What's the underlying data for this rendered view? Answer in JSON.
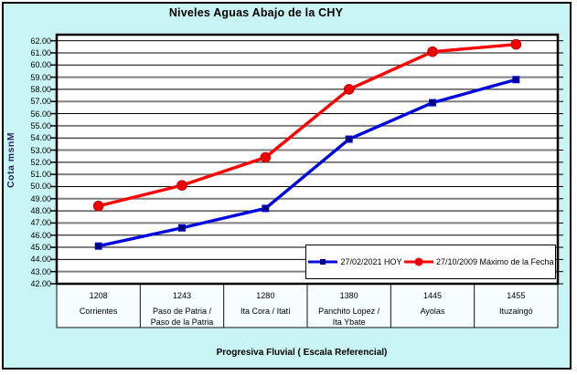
{
  "chart_title": "Niveles Aguas Abajo de la CHY",
  "y_axis": {
    "title": "Cota msnM",
    "tick_labels": [
      "62.00",
      "61.00",
      "60.00",
      "59.00",
      "58.00",
      "57.00",
      "56.00",
      "55.00",
      "54.00",
      "53.00",
      "52.00",
      "51.00",
      "50.00",
      "49.00",
      "48.00",
      "47.00",
      "46.00",
      "45.00",
      "44.00",
      "43.00",
      "42.00"
    ]
  },
  "x_axis": {
    "title": "Progresiva Fluvial ( Escala Referencial)"
  },
  "chart_data": {
    "type": "line",
    "title": "Niveles Aguas Abajo de la CHY",
    "xlabel": "Progresiva Fluvial ( Escala Referencial)",
    "ylabel": "Cota msnM",
    "ylim": [
      42,
      62.5
    ],
    "ytick_interval": 1,
    "grid": true,
    "legend_position": "inside-bottom-right",
    "categories": [
      {
        "km": "1208",
        "name_lines": [
          "Corrientes"
        ]
      },
      {
        "km": "1243",
        "name_lines": [
          "Paso de Patria /",
          "Paso de la Patria"
        ]
      },
      {
        "km": "1280",
        "name_lines": [
          "Ita Cora / Itatí"
        ]
      },
      {
        "km": "1380",
        "name_lines": [
          "Panchito Lopez /",
          "Ita Ybate"
        ]
      },
      {
        "km": "1445",
        "name_lines": [
          "Ayolas"
        ]
      },
      {
        "km": "1455",
        "name_lines": [
          "Ituzaingó"
        ]
      }
    ],
    "series": [
      {
        "name": "27/02/2021 HOY",
        "marker": "square",
        "line_color": "#0008DC",
        "marker_color": "#000080",
        "values": [
          45.1,
          46.6,
          48.2,
          53.9,
          56.9,
          58.8
        ]
      },
      {
        "name": "27/10/2009 Máximo de la Fecha",
        "marker": "circle",
        "line_color": "#FF0000",
        "marker_color": "#EE0000",
        "values": [
          48.4,
          50.1,
          52.4,
          58.0,
          61.1,
          61.7
        ]
      }
    ]
  },
  "colors": {
    "chart_background": "#C9F4F4",
    "plot_background": "#FFFFFF",
    "category_strip_background": "#F6FDFE",
    "gridline_major": "#000000",
    "gridline_gray": "#7F7F7F",
    "frame": "#000000"
  }
}
